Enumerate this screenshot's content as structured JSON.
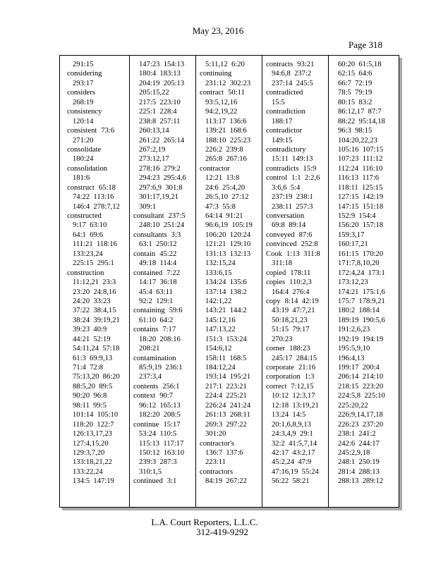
{
  "header": {
    "date": "May 23, 2016",
    "page": "Page 318"
  },
  "footer": {
    "company": "L.A. Court Reporters, L.L.C.",
    "phone": "312-419-9292"
  },
  "columns": [
    [
      {
        "term": "",
        "refs": "291:15"
      },
      {
        "term": "considering",
        "refs": ""
      },
      {
        "term": "",
        "refs": "293:17"
      },
      {
        "term": "considers",
        "refs": ""
      },
      {
        "term": "",
        "refs": "268:19"
      },
      {
        "term": "consistency",
        "refs": ""
      },
      {
        "term": "",
        "refs": "120:14"
      },
      {
        "term": "consistent",
        "refs": "73:6"
      },
      {
        "term": "",
        "refs": "271:20"
      },
      {
        "term": "consolidate",
        "refs": ""
      },
      {
        "term": "",
        "refs": "180:24"
      },
      {
        "term": "consolidation",
        "refs": ""
      },
      {
        "term": "",
        "refs": "181:6"
      },
      {
        "term": "construct",
        "refs": "65:18"
      },
      {
        "term": "",
        "refs": "74:22  113:16"
      },
      {
        "term": "",
        "refs": "146:4  278:7,12"
      },
      {
        "term": "constructed",
        "refs": ""
      },
      {
        "term": "",
        "refs": "9:17  63:10"
      },
      {
        "term": "",
        "refs": "64:1  69:6"
      },
      {
        "term": "",
        "refs": "111:21  118:16"
      },
      {
        "term": "",
        "refs": "133:23,24"
      },
      {
        "term": "",
        "refs": "225:15  295:1"
      },
      {
        "term": "construction",
        "refs": ""
      },
      {
        "term": "",
        "refs": "11:12,21  23:3"
      },
      {
        "term": "",
        "refs": "23:20  24:8,16"
      },
      {
        "term": "",
        "refs": "24:20  33:23"
      },
      {
        "term": "",
        "refs": "37:22  38:4,15"
      },
      {
        "term": "",
        "refs": "38:24  39:19,21"
      },
      {
        "term": "",
        "refs": "39:23  40:9"
      },
      {
        "term": "",
        "refs": "44:21  52:19"
      },
      {
        "term": "",
        "refs": "54:11,24  57:18"
      },
      {
        "term": "",
        "refs": "61:3  69:9,13"
      },
      {
        "term": "",
        "refs": "71:4  72:8"
      },
      {
        "term": "",
        "refs": "75:13,20  86:20"
      },
      {
        "term": "",
        "refs": "88:5,20  89:5"
      },
      {
        "term": "",
        "refs": "90:20  96:8"
      },
      {
        "term": "",
        "refs": "98:11  99:5"
      },
      {
        "term": "",
        "refs": "101:14  105:10"
      },
      {
        "term": "",
        "refs": "118:20  122:7"
      },
      {
        "term": "",
        "refs": "126:13,17,23"
      },
      {
        "term": "",
        "refs": "127:4,15,20"
      },
      {
        "term": "",
        "refs": "129:3,7,20"
      },
      {
        "term": "",
        "refs": "133:18,21,22"
      },
      {
        "term": "",
        "refs": "133:22,24"
      },
      {
        "term": "",
        "refs": "134:5  147:19"
      }
    ],
    [
      {
        "term": "",
        "refs": "147:23  154:13"
      },
      {
        "term": "",
        "refs": "180:4  183:13"
      },
      {
        "term": "",
        "refs": "204:19  205:13"
      },
      {
        "term": "",
        "refs": "205:15,22"
      },
      {
        "term": "",
        "refs": "217:5  223:10"
      },
      {
        "term": "",
        "refs": "225:1  228:4"
      },
      {
        "term": "",
        "refs": "238:8  257:11"
      },
      {
        "term": "",
        "refs": "260:13,14"
      },
      {
        "term": "",
        "refs": "261:22  265:14"
      },
      {
        "term": "",
        "refs": "267:2,19"
      },
      {
        "term": "",
        "refs": "273:12,17"
      },
      {
        "term": "",
        "refs": "278:16  279:2"
      },
      {
        "term": "",
        "refs": "294:23  295:4,6"
      },
      {
        "term": "",
        "refs": "297:6,9  301:8"
      },
      {
        "term": "",
        "refs": "301:17,19,21"
      },
      {
        "term": "",
        "refs": "309:1"
      },
      {
        "term": "consultant",
        "refs": "237:5"
      },
      {
        "term": "",
        "refs": "248:10  251:24"
      },
      {
        "term": "consultants",
        "refs": "3:3"
      },
      {
        "term": "",
        "refs": "63:1  250:12"
      },
      {
        "term": "contain",
        "refs": "45:22"
      },
      {
        "term": "",
        "refs": "49:18  114:4"
      },
      {
        "term": "contained",
        "refs": "7:22"
      },
      {
        "term": "",
        "refs": "14:17  36:18"
      },
      {
        "term": "",
        "refs": "45:4  63:11"
      },
      {
        "term": "",
        "refs": "92:2  129:1"
      },
      {
        "term": "containing",
        "refs": "59:6"
      },
      {
        "term": "",
        "refs": "61:10  64:2"
      },
      {
        "term": "contains",
        "refs": "7:17"
      },
      {
        "term": "",
        "refs": "18:20  208:16"
      },
      {
        "term": "",
        "refs": "208:21"
      },
      {
        "term": "contamination",
        "refs": ""
      },
      {
        "term": "",
        "refs": "85:9,19  236:1"
      },
      {
        "term": "",
        "refs": "237:3,4"
      },
      {
        "term": "contents",
        "refs": "256:1"
      },
      {
        "term": "context",
        "refs": "90:7"
      },
      {
        "term": "",
        "refs": "96:12  165:13"
      },
      {
        "term": "",
        "refs": "182:20  208:5"
      },
      {
        "term": "continue",
        "refs": "15:17"
      },
      {
        "term": "",
        "refs": "53:24  110:5"
      },
      {
        "term": "",
        "refs": "115:13  117:17"
      },
      {
        "term": "",
        "refs": "150:12  163:10"
      },
      {
        "term": "",
        "refs": "239:3  287:3"
      },
      {
        "term": "",
        "refs": "310:1,5"
      },
      {
        "term": "continued",
        "refs": "3:1"
      }
    ],
    [
      {
        "term": "",
        "refs": "5:11,12  6:20"
      },
      {
        "term": "continuing",
        "refs": ""
      },
      {
        "term": "",
        "refs": "231:12  302:23"
      },
      {
        "term": "contract",
        "refs": "50:11"
      },
      {
        "term": "",
        "refs": "93:5,12,16"
      },
      {
        "term": "",
        "refs": "94:2,19,22"
      },
      {
        "term": "",
        "refs": "113:17  136:6"
      },
      {
        "term": "",
        "refs": "139:21  168:6"
      },
      {
        "term": "",
        "refs": "188:10  225:23"
      },
      {
        "term": "",
        "refs": "226:2  239:8"
      },
      {
        "term": "",
        "refs": "265:8  267:16"
      },
      {
        "term": "contractor",
        "refs": ""
      },
      {
        "term": "",
        "refs": "12:21  13:8"
      },
      {
        "term": "",
        "refs": "24:6  25:4,20"
      },
      {
        "term": "",
        "refs": "26:5,10  27:12"
      },
      {
        "term": "",
        "refs": "47:3  55:8"
      },
      {
        "term": "",
        "refs": "64:14  91:21"
      },
      {
        "term": "",
        "refs": "96:6,19  105:19"
      },
      {
        "term": "",
        "refs": "106:20  120:24"
      },
      {
        "term": "",
        "refs": "121:21  129:10"
      },
      {
        "term": "",
        "refs": "131:13  132:13"
      },
      {
        "term": "",
        "refs": "132:15,24"
      },
      {
        "term": "",
        "refs": "133:6,15"
      },
      {
        "term": "",
        "refs": "134:24  135:6"
      },
      {
        "term": "",
        "refs": "137:14  138:2"
      },
      {
        "term": "",
        "refs": "142:1,22"
      },
      {
        "term": "",
        "refs": "143:21  144:2"
      },
      {
        "term": "",
        "refs": "145:12,16"
      },
      {
        "term": "",
        "refs": "147:13,22"
      },
      {
        "term": "",
        "refs": "151:3  153:24"
      },
      {
        "term": "",
        "refs": "154:6,12"
      },
      {
        "term": "",
        "refs": "158:11  168:5"
      },
      {
        "term": "",
        "refs": "184:12,24"
      },
      {
        "term": "",
        "refs": "193:14  195:21"
      },
      {
        "term": "",
        "refs": "217:1  223:21"
      },
      {
        "term": "",
        "refs": "224:4  225:21"
      },
      {
        "term": "",
        "refs": "226:24  241:24"
      },
      {
        "term": "",
        "refs": "261:13  268:11"
      },
      {
        "term": "",
        "refs": "269:3  297:22"
      },
      {
        "term": "",
        "refs": "301:20"
      },
      {
        "term": "contractor's",
        "refs": ""
      },
      {
        "term": "",
        "refs": "136:7  137:6"
      },
      {
        "term": "",
        "refs": "223:11"
      },
      {
        "term": "contractors",
        "refs": ""
      },
      {
        "term": "",
        "refs": "84:19  267:22"
      }
    ],
    [
      {
        "term": "contracts",
        "refs": "93:21"
      },
      {
        "term": "",
        "refs": "94:6,8  237:2"
      },
      {
        "term": "",
        "refs": "237:14  245:5"
      },
      {
        "term": "contradicted",
        "refs": ""
      },
      {
        "term": "",
        "refs": "15:5"
      },
      {
        "term": "contradiction",
        "refs": ""
      },
      {
        "term": "",
        "refs": "188:17"
      },
      {
        "term": "contradictor",
        "refs": ""
      },
      {
        "term": "",
        "refs": "149:15"
      },
      {
        "term": "contradictory",
        "refs": ""
      },
      {
        "term": "",
        "refs": "15:11  149:13"
      },
      {
        "term": "contradicts",
        "refs": "15:9"
      },
      {
        "term": "control",
        "refs": "1:1  2:2,6"
      },
      {
        "term": "",
        "refs": "3:6,6  5:4"
      },
      {
        "term": "",
        "refs": "237:19  238:1"
      },
      {
        "term": "",
        "refs": "238:11  257:3"
      },
      {
        "term": "conversation",
        "refs": ""
      },
      {
        "term": "",
        "refs": "69:8  89:14"
      },
      {
        "term": "conveyed",
        "refs": "87:6"
      },
      {
        "term": "convinced",
        "refs": "252:8"
      },
      {
        "term": "Cook",
        "refs": "1:13  311:8"
      },
      {
        "term": "",
        "refs": "311:18"
      },
      {
        "term": "copied",
        "refs": "178:11"
      },
      {
        "term": "copies",
        "refs": "110:2,3"
      },
      {
        "term": "",
        "refs": "164:4  276:4"
      },
      {
        "term": "copy",
        "refs": "8:14  42:19"
      },
      {
        "term": "",
        "refs": "43:19  47:7,21"
      },
      {
        "term": "",
        "refs": "50:18,21,23"
      },
      {
        "term": "",
        "refs": "51:15  79:17"
      },
      {
        "term": "",
        "refs": "270:23"
      },
      {
        "term": "corner",
        "refs": "188:23"
      },
      {
        "term": "",
        "refs": "245:17  284:15"
      },
      {
        "term": "corporate",
        "refs": "21:16"
      },
      {
        "term": "corporation",
        "refs": "1:3"
      },
      {
        "term": "correct",
        "refs": "7:12,15"
      },
      {
        "term": "",
        "refs": "10:12  12:3,17"
      },
      {
        "term": "",
        "refs": "12:18  13:19,21"
      },
      {
        "term": "",
        "refs": "13:24  14:5"
      },
      {
        "term": "",
        "refs": "20:1,6,8,9,13"
      },
      {
        "term": "",
        "refs": "24:3,4,9  29:1"
      },
      {
        "term": "",
        "refs": "32:2  41:5,7,14"
      },
      {
        "term": "",
        "refs": "42:17  43:2,17"
      },
      {
        "term": "",
        "refs": "45:2,24  47:9"
      },
      {
        "term": "",
        "refs": "47:16,19  55:24"
      },
      {
        "term": "",
        "refs": "56:22  58:21"
      }
    ],
    [
      {
        "term": "",
        "refs": "60:20  61:5,18"
      },
      {
        "term": "",
        "refs": "62:15  64:6"
      },
      {
        "term": "",
        "refs": "66:7  72:19"
      },
      {
        "term": "",
        "refs": "78:5  79:19"
      },
      {
        "term": "",
        "refs": "80:15  83:2"
      },
      {
        "term": "",
        "refs": "86:12,17  87:7"
      },
      {
        "term": "",
        "refs": "88:22  95:14,18"
      },
      {
        "term": "",
        "refs": "96:3  98:15"
      },
      {
        "term": "",
        "refs": "104:20,22,23"
      },
      {
        "term": "",
        "refs": "105:16  107:15"
      },
      {
        "term": "",
        "refs": "107:23  111:12"
      },
      {
        "term": "",
        "refs": "112:24  116:10"
      },
      {
        "term": "",
        "refs": "116:13  117:6"
      },
      {
        "term": "",
        "refs": "118:11  125:15"
      },
      {
        "term": "",
        "refs": "127:15  142:19"
      },
      {
        "term": "",
        "refs": "147:15  151:18"
      },
      {
        "term": "",
        "refs": "152:9  154:4"
      },
      {
        "term": "",
        "refs": "156:20  157:18"
      },
      {
        "term": "",
        "refs": "159:3,17"
      },
      {
        "term": "",
        "refs": "160:17,21"
      },
      {
        "term": "",
        "refs": "161:15  170:20"
      },
      {
        "term": "",
        "refs": "171:7,8,10,20"
      },
      {
        "term": "",
        "refs": "172:4,24  173:1"
      },
      {
        "term": "",
        "refs": "173:12,23"
      },
      {
        "term": "",
        "refs": "174:21  175:1,6"
      },
      {
        "term": "",
        "refs": "175:7  178:9,21"
      },
      {
        "term": "",
        "refs": "180:2  188:14"
      },
      {
        "term": "",
        "refs": "189:19  190:5,6"
      },
      {
        "term": "",
        "refs": "191:2,6,23"
      },
      {
        "term": "",
        "refs": "192:19  194:19"
      },
      {
        "term": "",
        "refs": "195:5,9,10"
      },
      {
        "term": "",
        "refs": "196:4,13"
      },
      {
        "term": "",
        "refs": "199:17  200:4"
      },
      {
        "term": "",
        "refs": "206:14  214:10"
      },
      {
        "term": "",
        "refs": "218:15  223:20"
      },
      {
        "term": "",
        "refs": "224:5,8  225:10"
      },
      {
        "term": "",
        "refs": "225:20,22"
      },
      {
        "term": "",
        "refs": "226:9,14,17,18"
      },
      {
        "term": "",
        "refs": "226:23  237:20"
      },
      {
        "term": "",
        "refs": "238:1  241:2"
      },
      {
        "term": "",
        "refs": "242:6  244:17"
      },
      {
        "term": "",
        "refs": "245:2,9,18"
      },
      {
        "term": "",
        "refs": "248:1  250:19"
      },
      {
        "term": "",
        "refs": "281:4  288:13"
      },
      {
        "term": "",
        "refs": "288:13  289:12"
      }
    ]
  ]
}
